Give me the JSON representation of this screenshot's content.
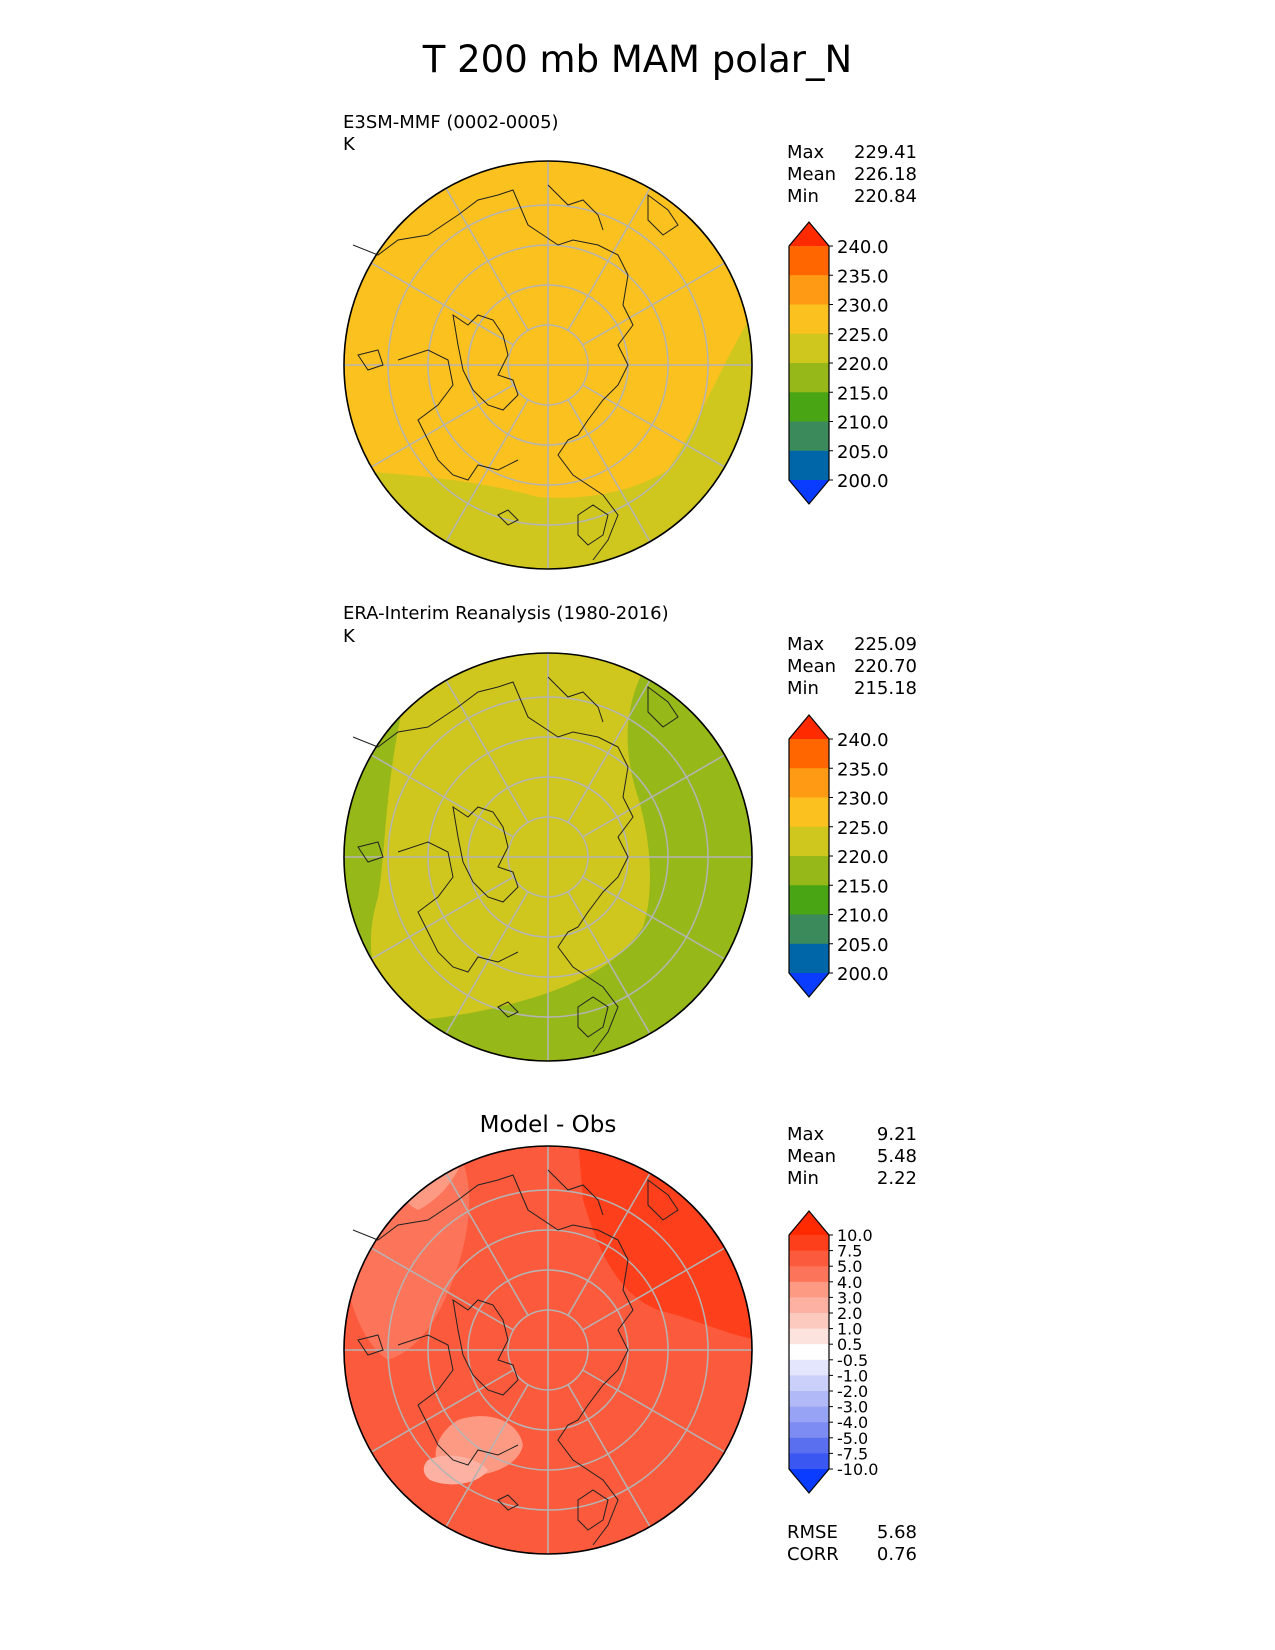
{
  "title": "T 200 mb MAM polar_N",
  "panels": {
    "model": {
      "subtitle": "E3SM-MMF (0002-0005)",
      "units": "K",
      "stats": {
        "max_label": "Max",
        "max": "229.41",
        "mean_label": "Mean",
        "mean": "226.18",
        "min_label": "Min",
        "min": "220.84"
      }
    },
    "obs": {
      "subtitle": "ERA-Interim Reanalysis (1980-2016)",
      "units": "K",
      "stats": {
        "max_label": "Max",
        "max": "225.09",
        "mean_label": "Mean",
        "mean": "220.70",
        "min_label": "Min",
        "min": "215.18"
      }
    },
    "diff": {
      "title": "Model - Obs",
      "stats": {
        "max_label": "Max",
        "max": "9.21",
        "mean_label": "Mean",
        "mean": "5.48",
        "min_label": "Min",
        "min": "2.22"
      },
      "metrics": {
        "rmse_label": "RMSE",
        "rmse": "5.68",
        "corr_label": "CORR",
        "corr": "0.76"
      }
    }
  },
  "chart_data": [
    {
      "type": "heatmap",
      "title": "E3SM-MMF (0002-0005)",
      "projection": "north polar stereographic",
      "units": "K",
      "max": 229.41,
      "mean": 226.18,
      "min": 220.84,
      "colorbar": {
        "ticks": [
          "240.0",
          "235.0",
          "230.0",
          "225.0",
          "220.0",
          "215.0",
          "210.0",
          "205.0",
          "200.0"
        ],
        "colors": [
          "#ff2a00",
          "#ff6600",
          "#ff9a14",
          "#fbc11f",
          "#d0c71e",
          "#96b818",
          "#4aa514",
          "#3a8a5c",
          "#0066a8",
          "#0a3cff"
        ]
      }
    },
    {
      "type": "heatmap",
      "title": "ERA-Interim Reanalysis (1980-2016)",
      "projection": "north polar stereographic",
      "units": "K",
      "max": 225.09,
      "mean": 220.7,
      "min": 215.18,
      "colorbar": {
        "ticks": [
          "240.0",
          "235.0",
          "230.0",
          "225.0",
          "220.0",
          "215.0",
          "210.0",
          "205.0",
          "200.0"
        ],
        "colors": [
          "#ff2a00",
          "#ff6600",
          "#ff9a14",
          "#fbc11f",
          "#d0c71e",
          "#96b818",
          "#4aa514",
          "#3a8a5c",
          "#0066a8",
          "#0a3cff"
        ]
      }
    },
    {
      "type": "heatmap",
      "title": "Model - Obs",
      "projection": "north polar stereographic",
      "max": 9.21,
      "mean": 5.48,
      "min": 2.22,
      "rmse": 5.68,
      "corr": 0.76,
      "colorbar": {
        "ticks": [
          "10.0",
          "7.5",
          "5.0",
          "4.0",
          "3.0",
          "2.0",
          "1.0",
          "0.5",
          "-0.5",
          "-1.0",
          "-2.0",
          "-3.0",
          "-4.0",
          "-5.0",
          "-7.5",
          "-10.0"
        ],
        "colors": [
          "#ff2a00",
          "#fd3f1c",
          "#fc5a3c",
          "#fc7459",
          "#fd9a84",
          "#fcb1a2",
          "#fdcabf",
          "#fde3dd",
          "#ffffff",
          "#e3e6fc",
          "#cad0fa",
          "#b1baf7",
          "#97a3f4",
          "#7d8cf2",
          "#5a6ef0",
          "#3a57f1",
          "#0a3cff"
        ]
      }
    }
  ]
}
